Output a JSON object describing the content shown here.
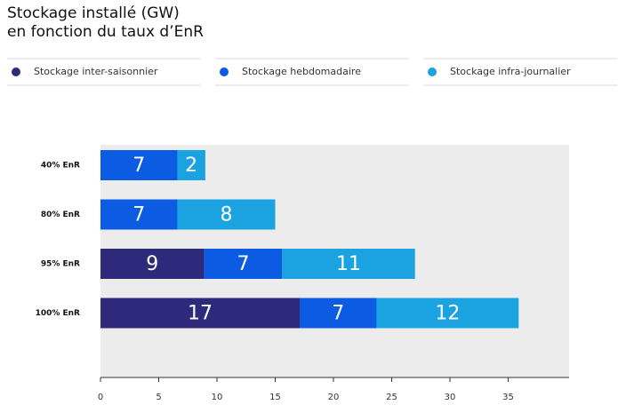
{
  "chart_data": {
    "type": "stacked-bar-horizontal",
    "title": [
      "Stockage installé (GW)",
      "en fonction du taux d’EnR"
    ],
    "categories": [
      "40% EnR",
      "80% EnR",
      "95% EnR",
      "100% EnR"
    ],
    "series": [
      {
        "name": "Stockage inter-saisonnier",
        "color": "#2d2a7b",
        "values": [
          null,
          null,
          8.9,
          17.1
        ],
        "value_labels": [
          null,
          null,
          "9",
          "17"
        ]
      },
      {
        "name": "Stockage hebdomadaire",
        "color": "#0b5be3",
        "values": [
          6.6,
          6.6,
          6.7,
          6.6
        ],
        "value_labels": [
          "7",
          "7",
          "7",
          "7"
        ]
      },
      {
        "name": "Stockage infra-journalier",
        "color": "#1aa3e0",
        "values": [
          2.4,
          8.4,
          11.4,
          12.2
        ],
        "value_labels": [
          "2",
          "8",
          "11",
          "12"
        ]
      }
    ],
    "xlim": [
      0,
      40
    ],
    "xticks": [
      0,
      5,
      10,
      15,
      20,
      25,
      30,
      35
    ]
  }
}
